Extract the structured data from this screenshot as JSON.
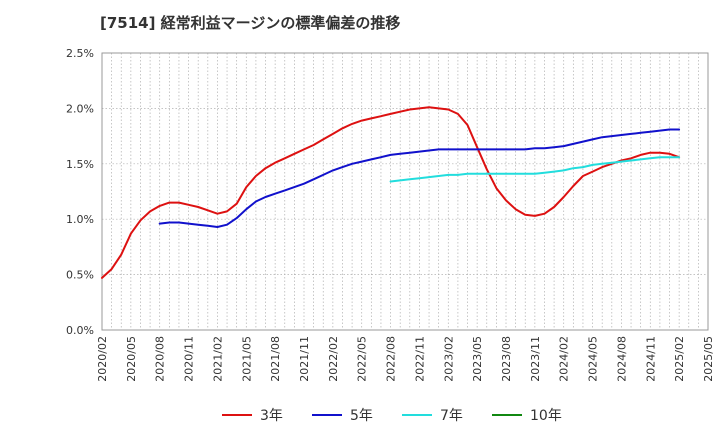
{
  "chart_data": {
    "type": "line",
    "title": "[7514]  経常利益マージンの標準偏差の推移",
    "xlabel": "",
    "ylabel": "",
    "ylim": [
      0,
      0.025
    ],
    "yticks": [
      "0.0%",
      "0.5%",
      "1.0%",
      "1.5%",
      "2.0%",
      "2.5%"
    ],
    "xticks": [
      "2020/02",
      "2020/05",
      "2020/08",
      "2020/11",
      "2021/02",
      "2021/05",
      "2021/08",
      "2021/11",
      "2022/02",
      "2022/05",
      "2022/08",
      "2022/11",
      "2023/02",
      "2023/05",
      "2023/08",
      "2023/11",
      "2024/02",
      "2024/05",
      "2024/08",
      "2024/11",
      "2025/02",
      "2025/05"
    ],
    "grid": true,
    "legend_position": "bottom",
    "series": [
      {
        "name": "3年",
        "color": "#dd1111",
        "x": [
          "2020/02",
          "2020/03",
          "2020/04",
          "2020/05",
          "2020/06",
          "2020/07",
          "2020/08",
          "2020/09",
          "2020/10",
          "2020/11",
          "2020/12",
          "2021/01",
          "2021/02",
          "2021/03",
          "2021/04",
          "2021/05",
          "2021/06",
          "2021/07",
          "2021/08",
          "2021/09",
          "2021/10",
          "2021/11",
          "2021/12",
          "2022/01",
          "2022/02",
          "2022/03",
          "2022/04",
          "2022/05",
          "2022/06",
          "2022/07",
          "2022/08",
          "2022/09",
          "2022/10",
          "2022/11",
          "2022/12",
          "2023/01",
          "2023/02",
          "2023/03",
          "2023/04",
          "2023/05",
          "2023/06",
          "2023/07",
          "2023/08",
          "2023/09",
          "2023/10",
          "2023/11",
          "2023/12",
          "2024/01",
          "2024/02",
          "2024/03",
          "2024/04",
          "2024/05",
          "2024/06",
          "2024/07",
          "2024/08",
          "2024/09",
          "2024/10",
          "2024/11",
          "2024/12",
          "2025/01",
          "2025/02"
        ],
        "values": [
          0.0047,
          0.0055,
          0.0068,
          0.0087,
          0.0099,
          0.0107,
          0.0112,
          0.0115,
          0.0115,
          0.0113,
          0.0111,
          0.0108,
          0.0105,
          0.0107,
          0.0114,
          0.0129,
          0.0139,
          0.0146,
          0.0151,
          0.0155,
          0.0159,
          0.0163,
          0.0167,
          0.0172,
          0.0177,
          0.0182,
          0.0186,
          0.0189,
          0.0191,
          0.0193,
          0.0195,
          0.0197,
          0.0199,
          0.02,
          0.0201,
          0.02,
          0.0199,
          0.0195,
          0.0185,
          0.0165,
          0.0145,
          0.0128,
          0.0117,
          0.0109,
          0.0104,
          0.0103,
          0.0105,
          0.0111,
          0.012,
          0.013,
          0.0139,
          0.0143,
          0.0147,
          0.015,
          0.0153,
          0.0155,
          0.0158,
          0.016,
          0.016,
          0.0159,
          0.0156
        ]
      },
      {
        "name": "5年",
        "color": "#1111cc",
        "x": [
          "2020/08",
          "2020/09",
          "2020/10",
          "2020/11",
          "2020/12",
          "2021/01",
          "2021/02",
          "2021/03",
          "2021/04",
          "2021/05",
          "2021/06",
          "2021/07",
          "2021/08",
          "2021/09",
          "2021/10",
          "2021/11",
          "2021/12",
          "2022/01",
          "2022/02",
          "2022/03",
          "2022/04",
          "2022/05",
          "2022/06",
          "2022/07",
          "2022/08",
          "2022/09",
          "2022/10",
          "2022/11",
          "2022/12",
          "2023/01",
          "2023/02",
          "2023/03",
          "2023/04",
          "2023/05",
          "2023/06",
          "2023/07",
          "2023/08",
          "2023/09",
          "2023/10",
          "2023/11",
          "2023/12",
          "2024/01",
          "2024/02",
          "2024/03",
          "2024/04",
          "2024/05",
          "2024/06",
          "2024/07",
          "2024/08",
          "2024/09",
          "2024/10",
          "2024/11",
          "2024/12",
          "2025/01",
          "2025/02"
        ],
        "values": [
          0.0096,
          0.0097,
          0.0097,
          0.0096,
          0.0095,
          0.0094,
          0.0093,
          0.0095,
          0.0101,
          0.0109,
          0.0116,
          0.012,
          0.0123,
          0.0126,
          0.0129,
          0.0132,
          0.0136,
          0.014,
          0.0144,
          0.0147,
          0.015,
          0.0152,
          0.0154,
          0.0156,
          0.0158,
          0.0159,
          0.016,
          0.0161,
          0.0162,
          0.0163,
          0.0163,
          0.0163,
          0.0163,
          0.0163,
          0.0163,
          0.0163,
          0.0163,
          0.0163,
          0.0163,
          0.0164,
          0.0164,
          0.0165,
          0.0166,
          0.0168,
          0.017,
          0.0172,
          0.0174,
          0.0175,
          0.0176,
          0.0177,
          0.0178,
          0.0179,
          0.018,
          0.0181,
          0.0181
        ]
      },
      {
        "name": "7年",
        "color": "#22dddd",
        "x": [
          "2022/08",
          "2022/09",
          "2022/10",
          "2022/11",
          "2022/12",
          "2023/01",
          "2023/02",
          "2023/03",
          "2023/04",
          "2023/05",
          "2023/06",
          "2023/07",
          "2023/08",
          "2023/09",
          "2023/10",
          "2023/11",
          "2023/12",
          "2024/01",
          "2024/02",
          "2024/03",
          "2024/04",
          "2024/05",
          "2024/06",
          "2024/07",
          "2024/08",
          "2024/09",
          "2024/10",
          "2024/11",
          "2024/12",
          "2025/01",
          "2025/02"
        ],
        "values": [
          0.0134,
          0.0135,
          0.0136,
          0.0137,
          0.0138,
          0.0139,
          0.014,
          0.014,
          0.0141,
          0.0141,
          0.0141,
          0.0141,
          0.0141,
          0.0141,
          0.0141,
          0.0141,
          0.0142,
          0.0143,
          0.0144,
          0.0146,
          0.0147,
          0.0149,
          0.015,
          0.0151,
          0.0152,
          0.0153,
          0.0154,
          0.0155,
          0.0156,
          0.0156,
          0.0156
        ]
      },
      {
        "name": "10年",
        "color": "#118811",
        "x": [],
        "values": []
      }
    ]
  }
}
